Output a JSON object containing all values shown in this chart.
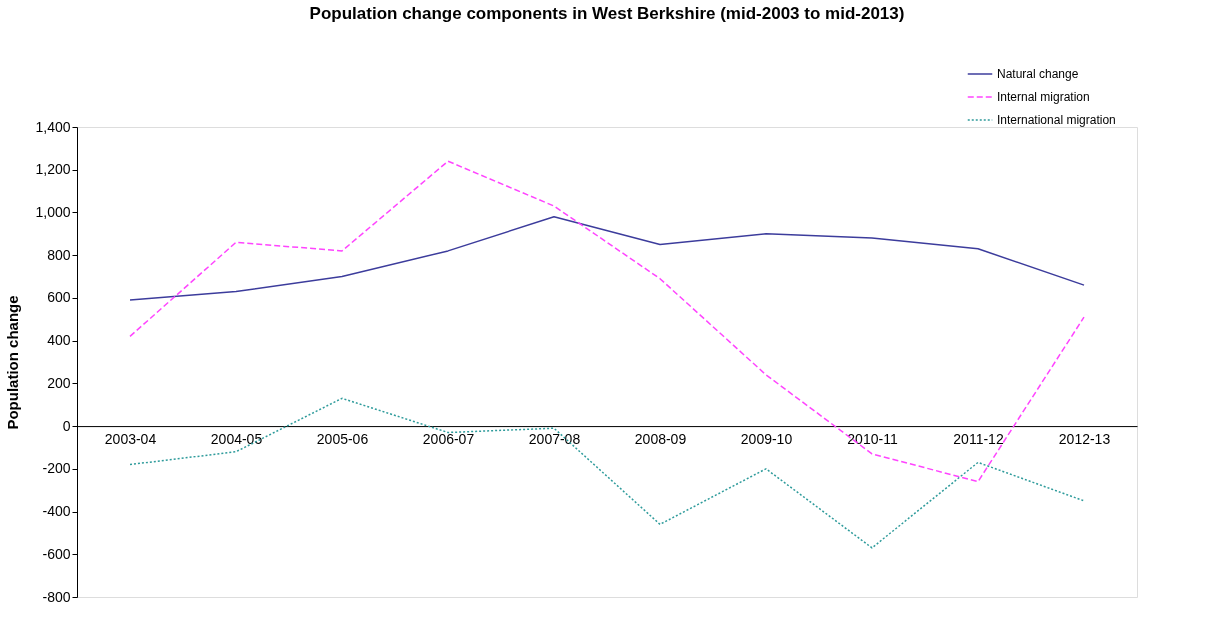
{
  "chart_data": {
    "type": "line",
    "title": "Population change components in West Berkshire (mid-2003 to mid-2013)",
    "ylabel": "Population change",
    "categories": [
      "2003-04",
      "2004-05",
      "2005-06",
      "2006-07",
      "2007-08",
      "2008-09",
      "2009-10",
      "2010-11",
      "2011-12",
      "2012-13"
    ],
    "series": [
      {
        "name": "Natural change",
        "color": "#3c3c9c",
        "line_style": "solid",
        "values": [
          590,
          630,
          700,
          820,
          980,
          850,
          900,
          880,
          830,
          660
        ]
      },
      {
        "name": "Internal migration",
        "color": "#ff44ff",
        "line_style": "dashed",
        "values": [
          420,
          860,
          820,
          1240,
          1030,
          690,
          240,
          -130,
          -260,
          510
        ]
      },
      {
        "name": "International migration",
        "color": "#2e9b9b",
        "line_style": "dotted",
        "values": [
          -180,
          -120,
          130,
          -30,
          -10,
          -460,
          -200,
          -570,
          -170,
          -350
        ]
      }
    ],
    "ylim": [
      -800,
      1400
    ],
    "yticks": [
      {
        "value": -800,
        "label": "-800"
      },
      {
        "value": -600,
        "label": "-600"
      },
      {
        "value": -400,
        "label": "-400"
      },
      {
        "value": -200,
        "label": "-200"
      },
      0,
      200,
      400,
      600,
      800,
      {
        "value": 1000,
        "label": "1,000"
      },
      {
        "value": 1200,
        "label": "1,200"
      },
      {
        "value": 1400,
        "label": "1,400"
      }
    ],
    "grid": false,
    "legend": "top right",
    "marker": "none"
  }
}
